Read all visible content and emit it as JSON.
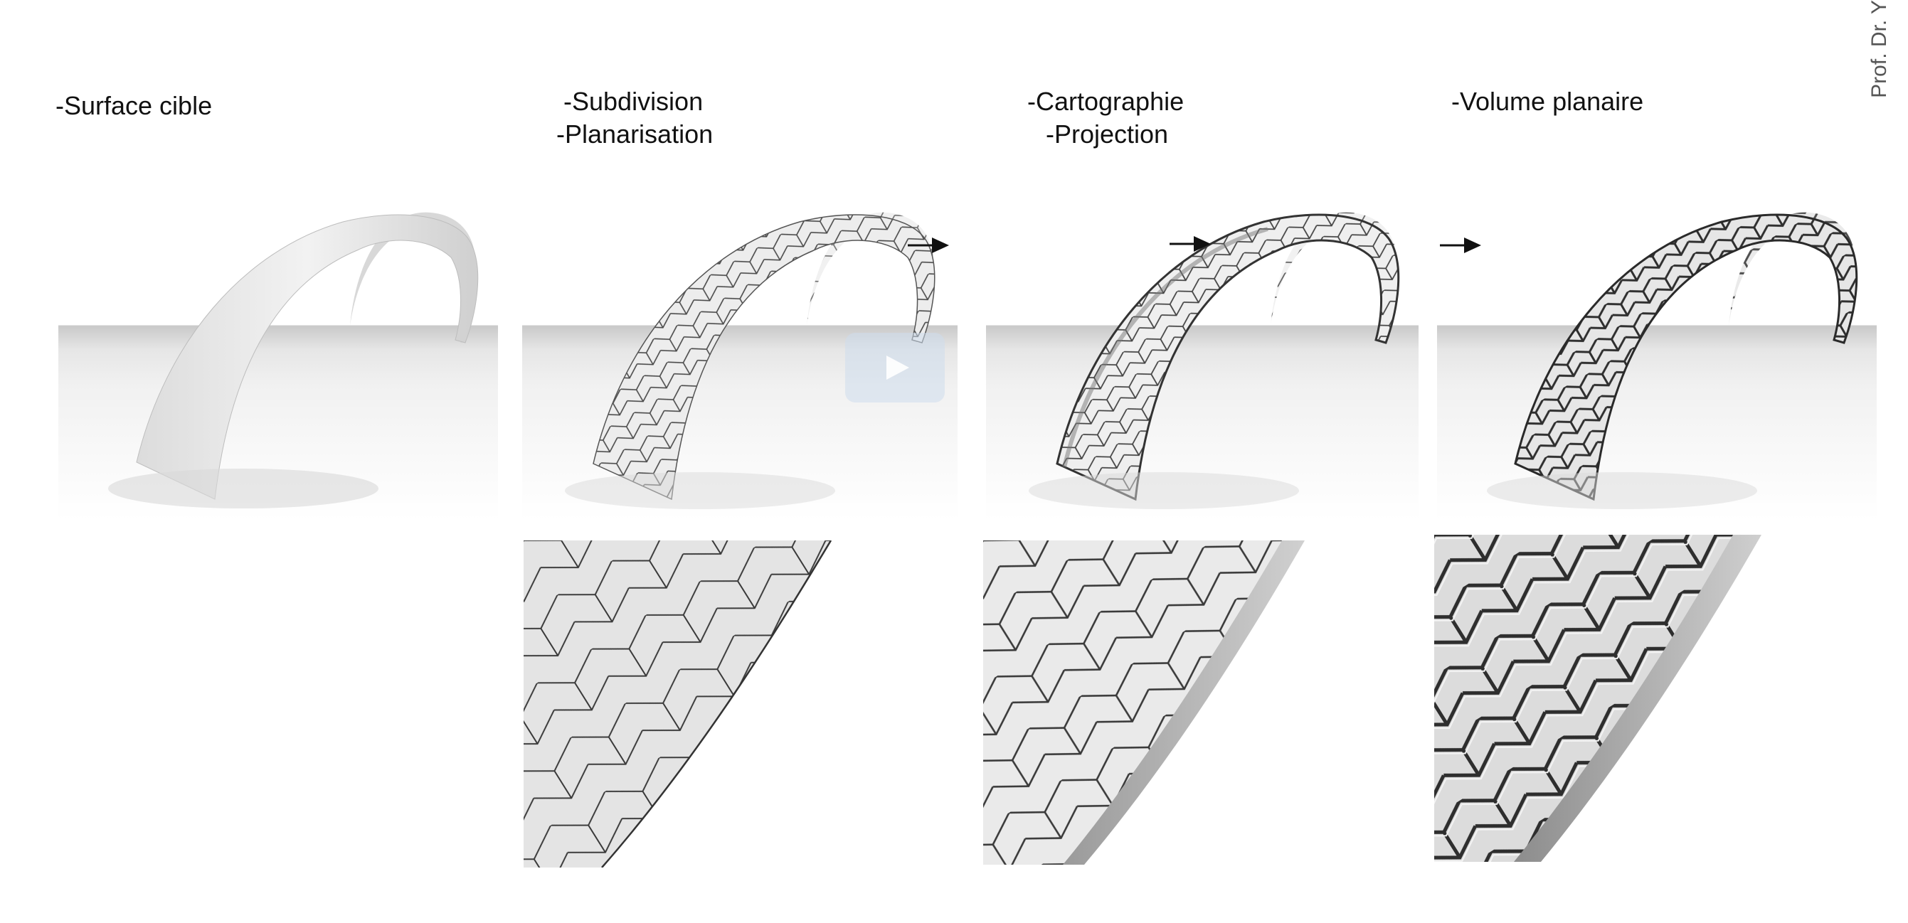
{
  "steps": [
    {
      "label_lines": [
        "-Surface cible"
      ]
    },
    {
      "label_lines": [
        "-Subdivision",
        "-Planarisation"
      ]
    },
    {
      "label_lines": [
        "-Cartographie",
        "-Projection"
      ]
    },
    {
      "label_lines": [
        "-Volume planaire"
      ]
    }
  ],
  "credit_text": "Prof. Dr. Y",
  "icons": {
    "arrows": [
      "arrow-right-icon",
      "arrow-right-icon",
      "arrow-right-icon"
    ],
    "play": "play-icon"
  },
  "colors": {
    "arch_fill": "#e9e9e9",
    "mesh_line": "#3a3a3a",
    "ground_horizon": "#c9c9c9"
  }
}
